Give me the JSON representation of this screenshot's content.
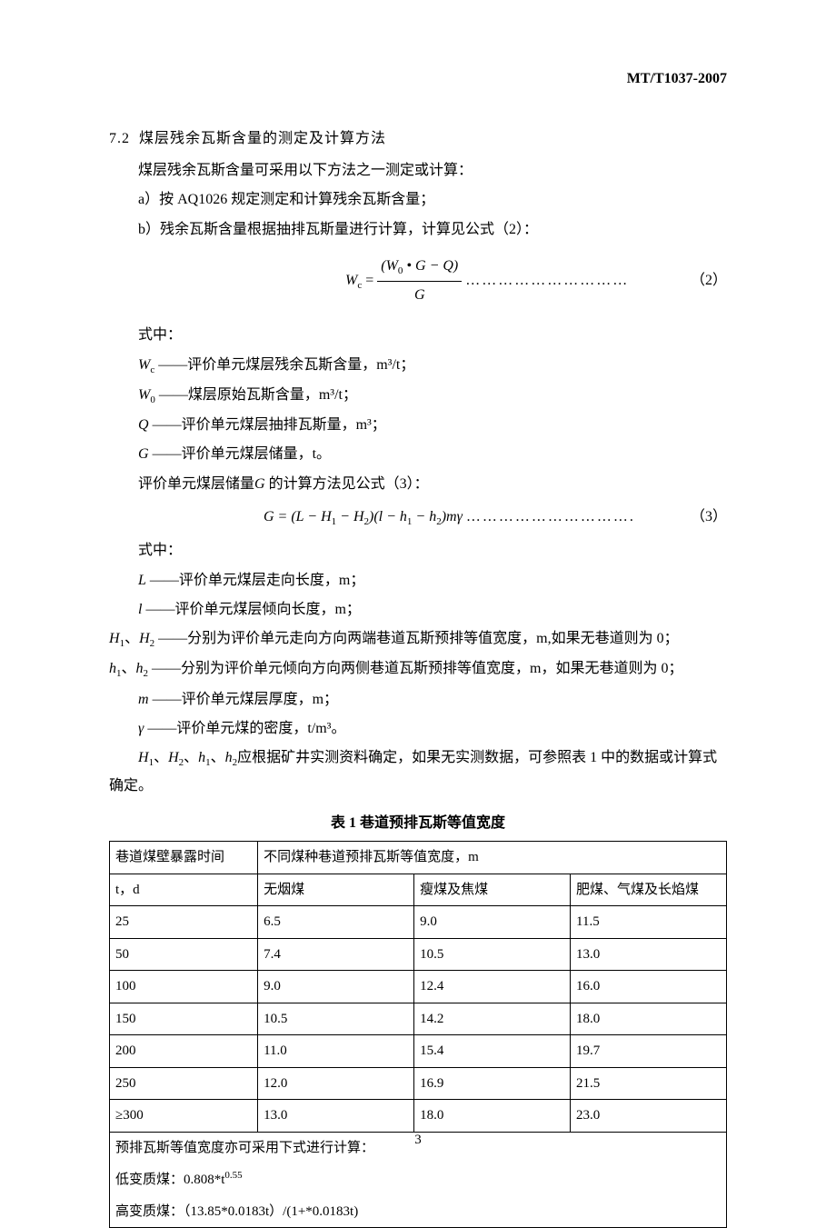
{
  "header": {
    "doc_id": "MT/T1037-2007"
  },
  "section": {
    "num": "7.2",
    "title": "煤层残余瓦斯含量的测定及计算方法",
    "intro": "煤层残余瓦斯含量可采用以下方法之一测定或计算：",
    "itemA": "a）按 AQ1026 规定测定和计算残余瓦斯含量；",
    "itemB": "b）残余瓦斯含量根据抽排瓦斯量进行计算，计算见公式（2）："
  },
  "formula2": {
    "lhs": "W",
    "lhs_sub": "c",
    "top_a": "(W",
    "top_sub0": "0",
    "top_b": " • G − Q)",
    "bot": "G",
    "dots": "…………………………",
    "num": "（2）"
  },
  "where_label": "式中：",
  "defs1": {
    "wc": "——评价单元煤层残余瓦斯含量，m³/t；",
    "w0": "——煤层原始瓦斯含量，m³/t；",
    "q": "——评价单元煤层抽排瓦斯量，m³；",
    "g": "——评价单元煤层储量，t。"
  },
  "g_intro": "的计算方法见公式（3）：",
  "g_prefix": "评价单元煤层储量",
  "formula3": {
    "expr_a": "G = (L − H",
    "s1": "1",
    "expr_b": " − H",
    "s2": "2",
    "expr_c": ")(l − h",
    "s3": "1",
    "expr_d": " − h",
    "s4": "2",
    "expr_e": ")mγ",
    "dots": "………………………….",
    "num": "（3）"
  },
  "defs2": {
    "L": "——评价单元煤层走向长度，m；",
    "l": "——评价单元煤层倾向长度，m；",
    "H12": "——分别为评价单元走向方向两端巷道瓦斯预排等值宽度，m,如果无巷道则为 0；",
    "h12": "——分别为评价单元倾向方向两侧巷道瓦斯预排等值宽度，m，如果无巷道则为 0；",
    "m": "——评价单元煤层厚度，m；",
    "gamma": "——评价单元煤的密度，t/m³。"
  },
  "note_tail": "应根据矿井实测资料确定，如果无实测数据，可参照表 1 中的数据或计算式确定。",
  "table": {
    "title": "表 1   巷道预排瓦斯等值宽度",
    "h_time": "巷道煤壁暴露时间",
    "h_time2": "t，d",
    "h_group": "不同煤种巷道预排瓦斯等值宽度，m",
    "h_c1": "无烟煤",
    "h_c2": "瘦煤及焦煤",
    "h_c3": "肥煤、气煤及长焰煤",
    "rows": [
      {
        "t": "25",
        "a": "6.5",
        "b": "9.0",
        "c": "11.5"
      },
      {
        "t": "50",
        "a": "7.4",
        "b": "10.5",
        "c": "13.0"
      },
      {
        "t": "100",
        "a": "9.0",
        "b": "12.4",
        "c": "16.0"
      },
      {
        "t": "150",
        "a": "10.5",
        "b": "14.2",
        "c": "18.0"
      },
      {
        "t": "200",
        "a": "11.0",
        "b": "15.4",
        "c": "19.7"
      },
      {
        "t": "250",
        "a": "12.0",
        "b": "16.9",
        "c": "21.5"
      },
      {
        "t": "≥300",
        "a": "13.0",
        "b": "18.0",
        "c": "23.0"
      }
    ],
    "note1": "预排瓦斯等值宽度亦可采用下式进行计算：",
    "note2": "低变质煤：0.808*t",
    "note2_sup": "0.55",
    "note3": "高变质煤：（13.85*0.0183t）/(1+*0.0183t)"
  },
  "page": "3"
}
